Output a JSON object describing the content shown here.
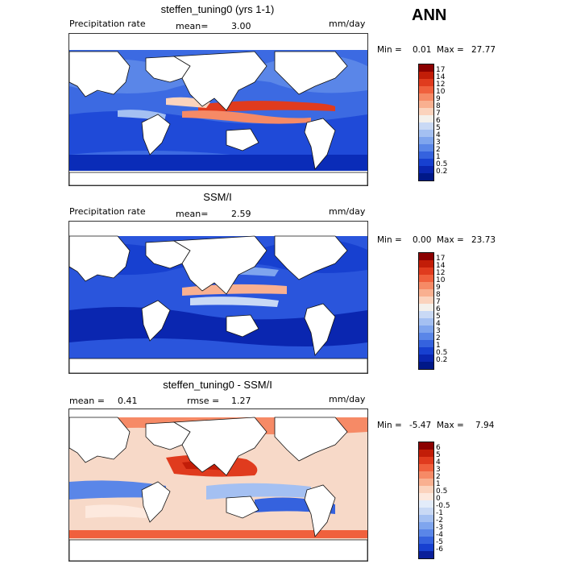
{
  "season_label": "ANN",
  "panels": [
    {
      "title": "steffen_tuning0 (yrs 1-1)",
      "left_label": "Precipitation rate",
      "mean_label": "mean=",
      "mean_value": "3.00",
      "rmse_label": "",
      "rmse_value": "",
      "units": "mm/day",
      "min_label": "Min =",
      "min_value": "0.01",
      "max_label": "Max =",
      "max_value": "27.77",
      "levels": [
        "17",
        "14",
        "12",
        "10",
        "9",
        "8",
        "7",
        "6",
        "5",
        "4",
        "3",
        "2",
        "1",
        "0.5",
        "0.2"
      ],
      "colors": [
        "#8b0000",
        "#c21d08",
        "#e03b1e",
        "#f0603d",
        "#f68a66",
        "#f9b090",
        "#fbd3bd",
        "#f4f1ec",
        "#c9d9f5",
        "#a4c0f2",
        "#7fa5ee",
        "#5a86e8",
        "#3562de",
        "#1740d0",
        "#0a26b0",
        "#001888"
      ],
      "ocean_base": "#2f5fe0"
    },
    {
      "title": "SSM/I",
      "left_label": "Precipitation rate",
      "mean_label": "mean=",
      "mean_value": "2.59",
      "rmse_label": "",
      "rmse_value": "",
      "units": "mm/day",
      "min_label": "Min =",
      "min_value": "0.00",
      "max_label": "Max =",
      "max_value": "23.73",
      "levels": [
        "17",
        "14",
        "12",
        "10",
        "9",
        "8",
        "7",
        "6",
        "5",
        "4",
        "3",
        "2",
        "1",
        "0.5",
        "0.2"
      ],
      "colors": [
        "#8b0000",
        "#c21d08",
        "#e03b1e",
        "#f0603d",
        "#f68a66",
        "#f9b090",
        "#fbd3bd",
        "#f4f1ec",
        "#c9d9f5",
        "#a4c0f2",
        "#7fa5ee",
        "#5a86e8",
        "#3562de",
        "#1740d0",
        "#0a26b0",
        "#001888"
      ],
      "ocean_base": "#2a55dc"
    },
    {
      "title": "steffen_tuning0 - SSM/I",
      "left_label": "",
      "mean_label": "mean =",
      "mean_value": "0.41",
      "rmse_label": "rmse =",
      "rmse_value": "1.27",
      "units": "mm/day",
      "min_label": "Min =",
      "min_value": "-5.47",
      "max_label": "Max =",
      "max_value": "7.94",
      "levels": [
        "6",
        "5",
        "4",
        "3",
        "2",
        "1",
        "0.5",
        "0",
        "-0.5",
        "-1",
        "-2",
        "-3",
        "-4",
        "-5",
        "-6"
      ],
      "colors": [
        "#8b0000",
        "#c21d08",
        "#e03b1e",
        "#f0603d",
        "#f68a66",
        "#f9b090",
        "#fbd3bd",
        "#fde9de",
        "#e3ecfa",
        "#c9d9f5",
        "#a4c0f2",
        "#7fa5ee",
        "#5a86e8",
        "#3562de",
        "#1740d0",
        "#0a1f9a"
      ],
      "ocean_base": "#f7d9c8"
    }
  ]
}
